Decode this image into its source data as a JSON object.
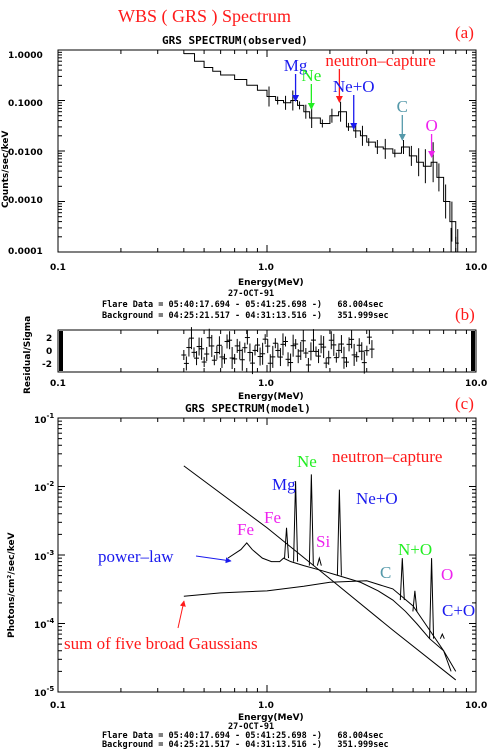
{
  "header": {
    "title": "WBS ( GRS ) Spectrum"
  },
  "colors": {
    "red": "#ff1a1a",
    "green": "#22ee22",
    "blue": "#1a1aee",
    "magenta": "#ee22ee",
    "teal": "#5599aa",
    "black": "#000000"
  },
  "panels": [
    {
      "letter": "(a)",
      "title": "GRS SPECTRUM(observed)",
      "ylabel": "Counts/sec/keV",
      "xlabel": "Energy(MeV)",
      "date": "27-OCT-91",
      "flare": "Flare Data = 05:40:17.694 - 05:41:25.698 -)   68.004sec",
      "background": "Background = 04:25:21.517 - 04:31:13.516 -)   351.999sec"
    },
    {
      "letter": "(b)",
      "ylabel": "Residual/Sigma",
      "xlabel": "Energy(MeV)"
    },
    {
      "letter": "(c)",
      "title": "GRS SPECTRUM(model)",
      "ylabel": "Photons/cm²/sec/keV",
      "xlabel": "Energy(MeV)",
      "date": "27-OCT-91",
      "flare": "Flare Data = 05:40:17.694 - 05:41:25.698 -)   68.004sec",
      "background": "Background = 04:25:21.517 - 04:31:13.516 -)   351.999sec"
    }
  ],
  "chart_data": [
    {
      "type": "line",
      "title": "GRS SPECTRUM(observed)",
      "xlabel": "Energy(MeV)",
      "ylabel": "Counts/sec/keV",
      "xscale": "log",
      "yscale": "log",
      "xlim": [
        0.1,
        10.0
      ],
      "ylim": [
        0.0001,
        1.0
      ],
      "x_ticks": [
        "0.1",
        "1.0",
        "10.0"
      ],
      "y_ticks": [
        "1.0000",
        "0.1000",
        "0.0100",
        "0.0010",
        "0.0001"
      ],
      "series": [
        {
          "points": [
            [
              0.4,
              0.85
            ],
            [
              0.45,
              0.6
            ],
            [
              0.5,
              0.45
            ],
            [
              0.55,
              0.38
            ],
            [
              0.6,
              0.32
            ],
            [
              0.7,
              0.26
            ],
            [
              0.8,
              0.2
            ],
            [
              0.9,
              0.16
            ],
            [
              1.0,
              0.12
            ],
            [
              1.1,
              0.1
            ],
            [
              1.2,
              0.09
            ],
            [
              1.3,
              0.1
            ],
            [
              1.4,
              0.08
            ],
            [
              1.5,
              0.06
            ],
            [
              1.6,
              0.045
            ],
            [
              1.8,
              0.035
            ],
            [
              2.0,
              0.05
            ],
            [
              2.2,
              0.06
            ],
            [
              2.4,
              0.03
            ],
            [
              2.6,
              0.025
            ],
            [
              2.8,
              0.02
            ],
            [
              3.0,
              0.015
            ],
            [
              3.3,
              0.012
            ],
            [
              3.6,
              0.011
            ],
            [
              4.0,
              0.009
            ],
            [
              4.4,
              0.012
            ],
            [
              4.8,
              0.008
            ],
            [
              5.2,
              0.006
            ],
            [
              5.6,
              0.005
            ],
            [
              6.1,
              0.006
            ],
            [
              6.5,
              0.003
            ],
            [
              7.0,
              0.001
            ],
            [
              7.5,
              0.0004
            ],
            [
              8.0,
              0.00015
            ]
          ]
        }
      ],
      "annotations": [
        {
          "text": "Mg",
          "x": 1.37,
          "color": "blue"
        },
        {
          "text": "Ne",
          "x": 1.63,
          "color": "green"
        },
        {
          "text": "neutron–capture",
          "x": 2.22,
          "color": "red"
        },
        {
          "text": "Ne+O",
          "x": 2.6,
          "color": "blue"
        },
        {
          "text": "C",
          "x": 4.44,
          "color": "teal"
        },
        {
          "text": "O",
          "x": 6.13,
          "color": "magenta"
        }
      ]
    },
    {
      "type": "scatter",
      "xlabel": "Energy(MeV)",
      "ylabel": "Residual/Sigma",
      "xscale": "log",
      "xlim": [
        0.1,
        10.0
      ],
      "ylim": [
        -3,
        3
      ],
      "x_ticks": [
        "0.1",
        "1.0",
        "10.0"
      ],
      "y_ticks": [
        "2",
        "0",
        "-2"
      ]
    },
    {
      "type": "line",
      "title": "GRS SPECTRUM(model)",
      "xlabel": "Energy(MeV)",
      "ylabel": "Photons/cm²/sec/keV",
      "xscale": "log",
      "yscale": "log",
      "xlim": [
        0.1,
        10.0
      ],
      "ylim": [
        1e-05,
        0.1
      ],
      "x_ticks": [
        "0.1",
        "1.0",
        "10.0"
      ],
      "y_ticks": [
        "10",
        "10",
        "10",
        "10",
        "10"
      ],
      "y_tick_exponents": [
        "-1",
        "-2",
        "-3",
        "-4",
        "-5"
      ],
      "lines": [
        {
          "name": "power-law",
          "points": [
            [
              0.4,
              0.02
            ],
            [
              1.0,
              0.0025
            ],
            [
              2.0,
              0.00045
            ],
            [
              4.0,
              8e-05
            ],
            [
              8.0,
              1.5e-05
            ]
          ]
        },
        {
          "name": "sum of five broad Gaussians",
          "points": [
            [
              0.4,
              0.00025
            ],
            [
              0.6,
              0.00028
            ],
            [
              1.0,
              0.0003
            ],
            [
              1.5,
              0.00035
            ],
            [
              2.0,
              0.0004
            ],
            [
              3.0,
              0.00042
            ],
            [
              4.0,
              0.00032
            ],
            [
              5.0,
              0.00018
            ],
            [
              6.0,
              8e-05
            ],
            [
              7.0,
              4e-05
            ],
            [
              8.0,
              2e-05
            ]
          ]
        }
      ],
      "annotations": [
        {
          "text": "Fe",
          "x": 0.85,
          "color": "magenta"
        },
        {
          "text": "Fe",
          "x": 1.24,
          "color": "magenta"
        },
        {
          "text": "Mg",
          "x": 1.37,
          "color": "blue"
        },
        {
          "text": "Ne",
          "x": 1.63,
          "color": "green"
        },
        {
          "text": "Si",
          "x": 1.78,
          "color": "magenta"
        },
        {
          "text": "neutron–capture",
          "x": 2.22,
          "color": "red"
        },
        {
          "text": "Ne+O",
          "x": 2.6,
          "color": "blue"
        },
        {
          "text": "C",
          "x": 4.44,
          "color": "teal"
        },
        {
          "text": "N+O",
          "x": 5.1,
          "color": "green"
        },
        {
          "text": "O",
          "x": 6.13,
          "color": "magenta"
        },
        {
          "text": "C+O",
          "x": 6.9,
          "color": "blue"
        },
        {
          "text": "power–law",
          "color": "blue"
        },
        {
          "text": "sum of five broad Gaussians",
          "color": "red"
        }
      ]
    }
  ]
}
